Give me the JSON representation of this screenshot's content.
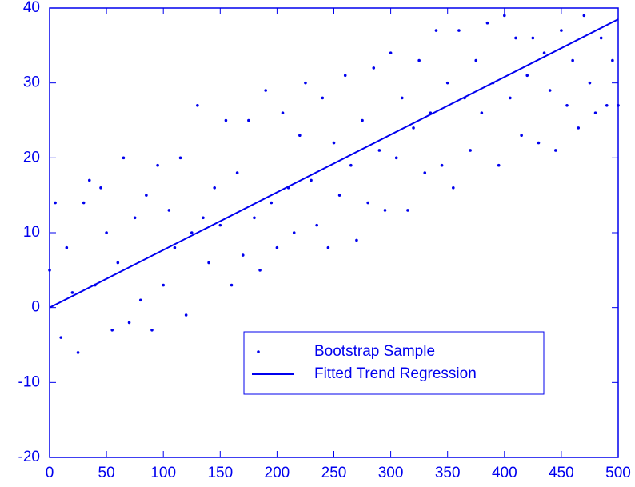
{
  "chart_data": {
    "type": "scatter",
    "xlim": [
      0,
      500
    ],
    "ylim": [
      -20,
      40
    ],
    "xticks": [
      0,
      50,
      100,
      150,
      200,
      250,
      300,
      350,
      400,
      450,
      500
    ],
    "yticks": [
      -20,
      -10,
      0,
      10,
      20,
      30,
      40
    ],
    "legend": "lower right",
    "series": [
      {
        "name": "Bootstrap Sample",
        "type": "scatter",
        "color": "#0000ee",
        "x": [
          0,
          5,
          10,
          15,
          20,
          25,
          30,
          35,
          40,
          45,
          50,
          55,
          60,
          65,
          70,
          75,
          80,
          85,
          90,
          95,
          100,
          105,
          110,
          115,
          120,
          125,
          130,
          135,
          140,
          145,
          150,
          155,
          160,
          165,
          170,
          175,
          180,
          185,
          190,
          195,
          200,
          205,
          210,
          215,
          220,
          225,
          230,
          235,
          240,
          245,
          250,
          255,
          260,
          265,
          270,
          275,
          280,
          285,
          290,
          295,
          300,
          305,
          310,
          315,
          320,
          325,
          330,
          335,
          340,
          345,
          350,
          355,
          360,
          365,
          370,
          375,
          380,
          385,
          390,
          395,
          400,
          405,
          410,
          415,
          420,
          425,
          430,
          435,
          440,
          445,
          450,
          455,
          460,
          465,
          470,
          475,
          480,
          485,
          490,
          495,
          500
        ],
        "values": [
          5,
          14,
          -4,
          8,
          2,
          -6,
          14,
          17,
          3,
          16,
          10,
          -3,
          6,
          20,
          -2,
          12,
          1,
          15,
          -3,
          19,
          3,
          13,
          8,
          20,
          -1,
          10,
          27,
          12,
          6,
          16,
          11,
          25,
          3,
          18,
          7,
          25,
          12,
          5,
          29,
          14,
          8,
          26,
          16,
          10,
          23,
          30,
          17,
          11,
          28,
          8,
          22,
          15,
          31,
          19,
          9,
          25,
          14,
          32,
          21,
          13,
          34,
          20,
          28,
          13,
          24,
          33,
          18,
          26,
          37,
          19,
          30,
          16,
          37,
          28,
          21,
          33,
          26,
          38,
          30,
          19,
          39,
          28,
          36,
          23,
          31,
          36,
          22,
          34,
          29,
          21,
          37,
          27,
          33,
          24,
          39,
          30,
          26,
          36,
          27,
          33,
          27
        ]
      },
      {
        "name": "Fitted Trend Regression",
        "type": "line",
        "color": "#0000ee",
        "x": [
          0,
          500
        ],
        "values": [
          0,
          38.5
        ]
      }
    ]
  }
}
